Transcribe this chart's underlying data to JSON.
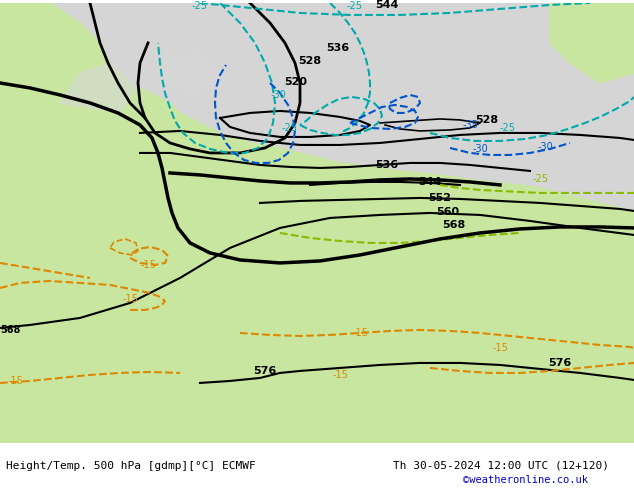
{
  "title_left": "Height/Temp. 500 hPa [gdmp][°C] ECMWF",
  "title_right": "Th 30-05-2024 12:00 UTC (12+120)",
  "credit": "©weatheronline.co.uk",
  "bg_color": "#d5d5d5",
  "land_color": "#c8e6a0",
  "contour_black": "#000000",
  "contour_cyan": "#00aaaa",
  "contour_blue": "#0055cc",
  "contour_green": "#88bb00",
  "contour_orange": "#dd8800",
  "figsize": [
    6.34,
    4.9
  ],
  "dpi": 100
}
